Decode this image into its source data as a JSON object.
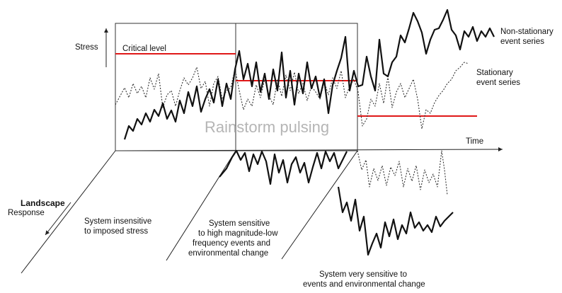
{
  "axes": {
    "y_label": "Stress",
    "x_label": "Time",
    "z_label_line1": "Landscape",
    "z_label_line2": "Response"
  },
  "critical_level_label": "Critical level",
  "watermark": "Rainstorm pulsing",
  "series_labels": {
    "non_stationary_line1": "Non-stationary",
    "non_stationary_line2": "event series",
    "stationary_line1": "Stationary",
    "stationary_line2": "event series"
  },
  "panels": [
    {
      "lines": [
        "System insensitive",
        "to imposed stress"
      ]
    },
    {
      "lines": [
        "System sensitive",
        "to high magnitude-low",
        "frequency events and",
        "environmental change"
      ]
    },
    {
      "lines": [
        "System very sensitive to",
        "events and environmental change"
      ]
    }
  ],
  "colors": {
    "critical_level": "#e01818",
    "watermark": "#b5b5b5"
  }
}
